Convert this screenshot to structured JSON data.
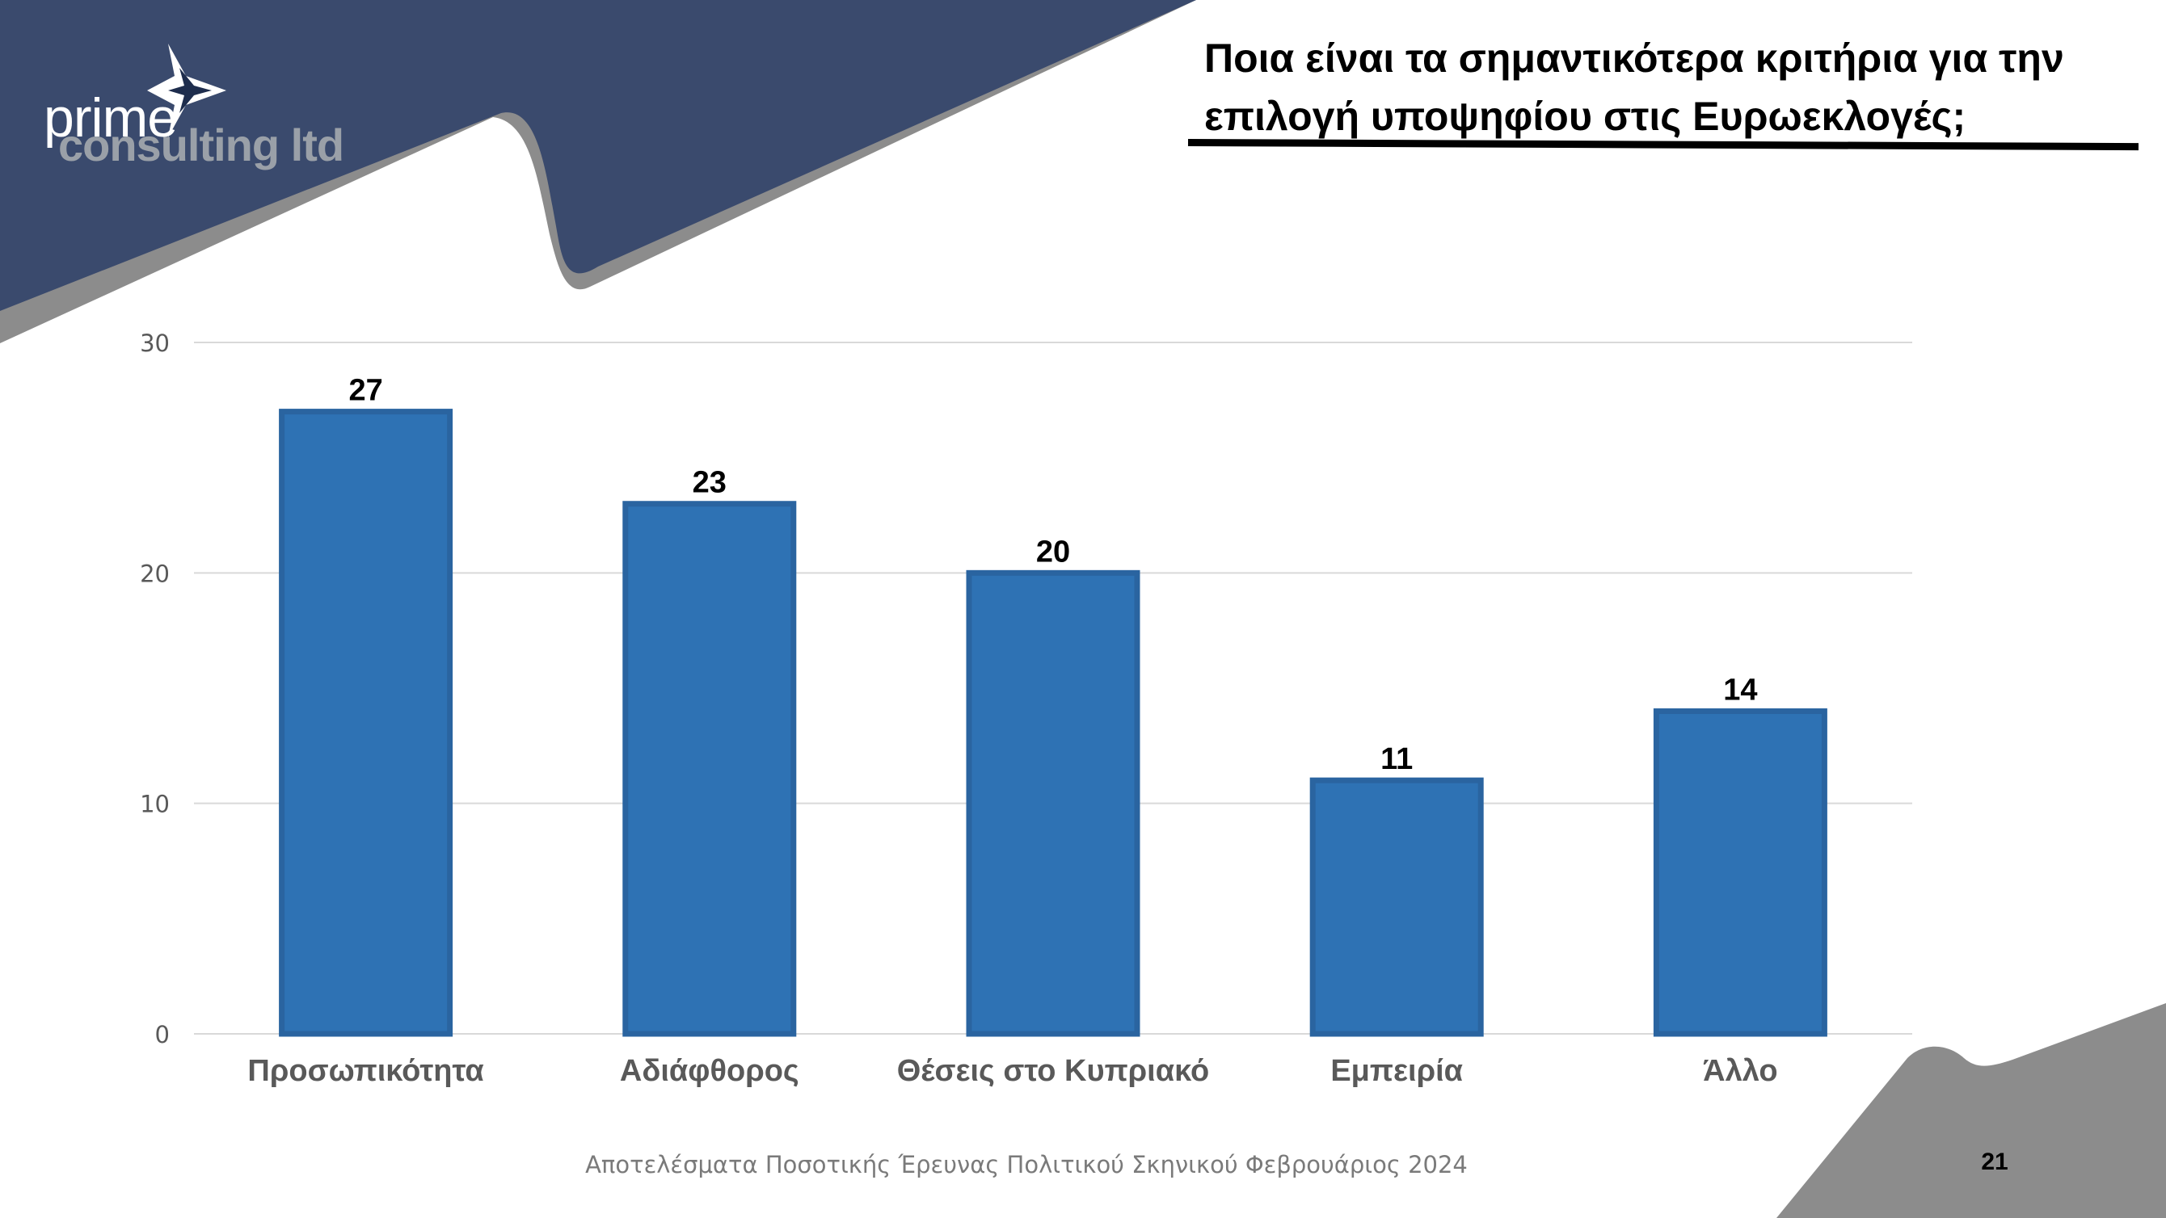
{
  "brand": {
    "logo_line1": "prime",
    "logo_line2": "consulting ltd",
    "navy": "#3a4a6d",
    "grey": "#8c8c8c",
    "bar_color": "#2e72b4",
    "bar_edge": "#2a64a0"
  },
  "title": "Ποια είναι τα σημαντικότερα κριτήρια για την επιλογή υποψηφίου στις Ευρωεκλογές;",
  "footer": "Αποτελέσματα Ποσοτικής Έρευνας Πολιτικού Σκηνικού Φεβρουάριος 2024",
  "page_number": "21",
  "chart_data": {
    "type": "bar",
    "categories": [
      "Προσωπικότητα",
      "Αδιάφθορος",
      "Θέσεις στο Κυπριακό",
      "Εμπειρία",
      "Άλλο"
    ],
    "values": [
      27,
      23,
      20,
      11,
      14
    ],
    "ylim": [
      0,
      30
    ],
    "yticks": [
      0,
      10,
      20,
      30
    ],
    "grid": true,
    "legend": "none"
  }
}
